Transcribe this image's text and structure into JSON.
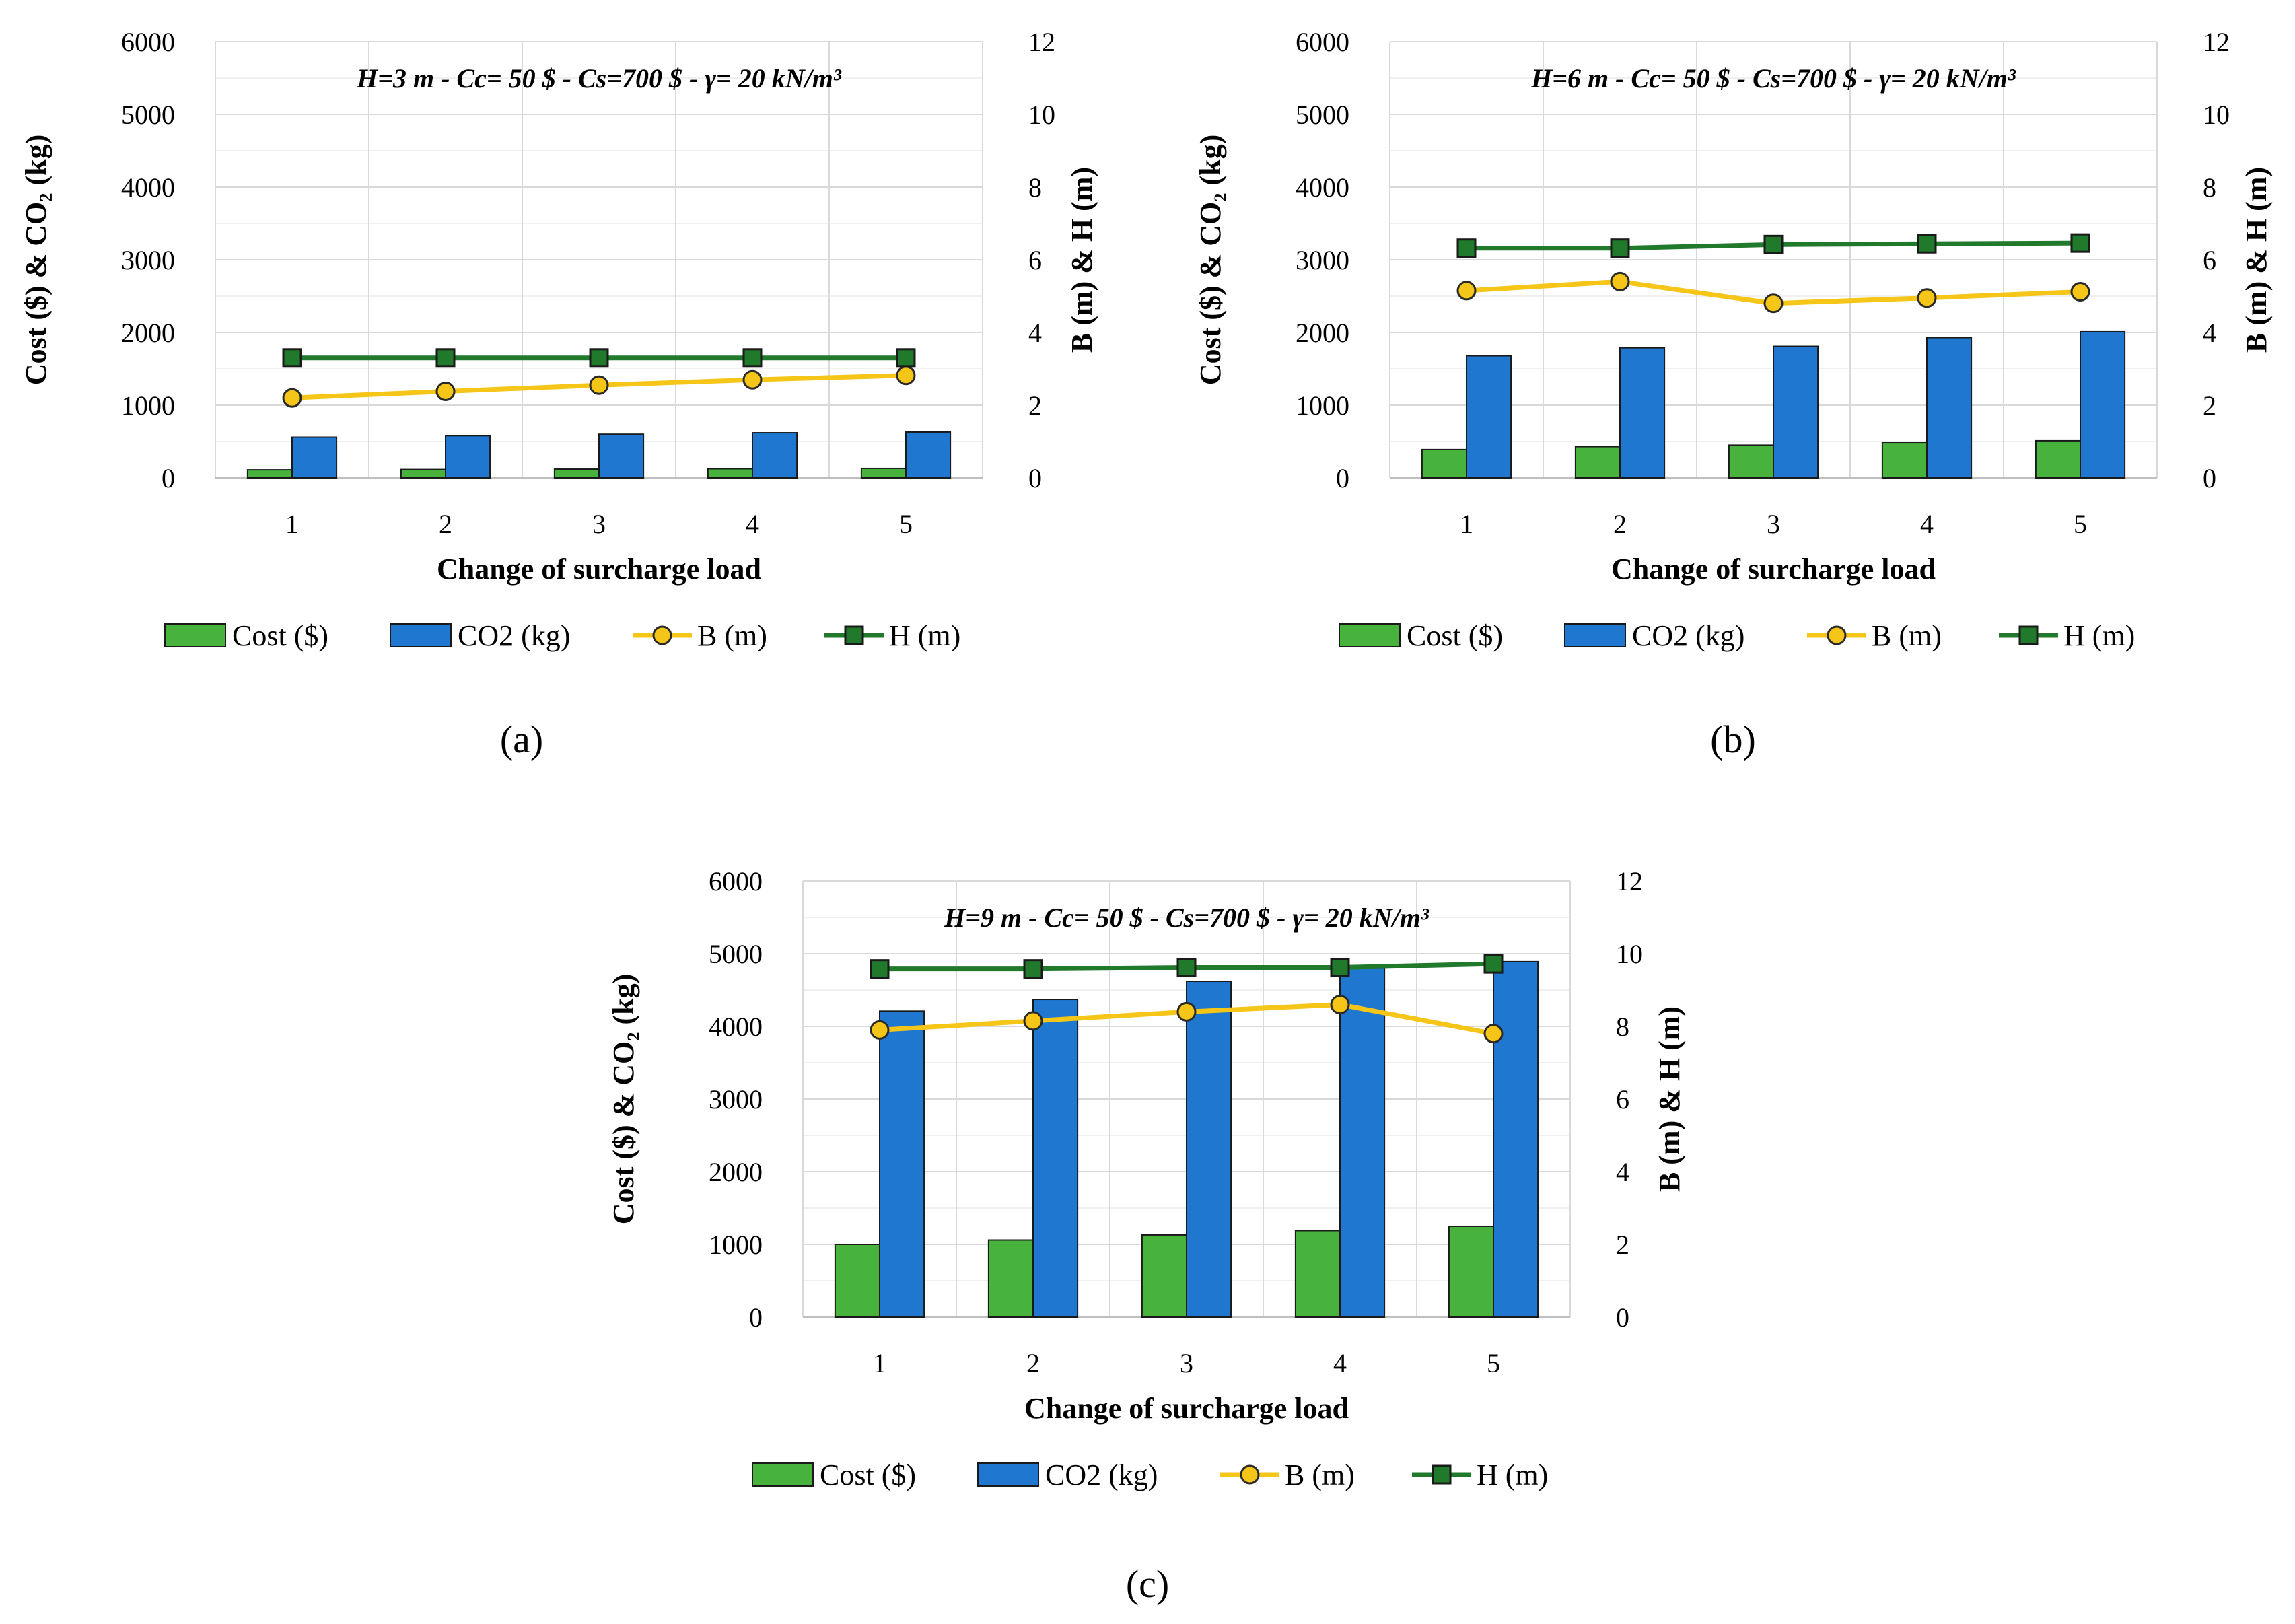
{
  "chart_data": [
    {
      "type": "bar",
      "panel_label": "(a)",
      "title": "H=3 m - Cc= 50 $ - Cs=700 $ - γ= 20 kN/m³",
      "xlabel": "Change of surcharge load",
      "ylabel_left": "Cost ($) & CO₂ (kg)",
      "ylabel_right": "B (m) & H (m)",
      "categories": [
        "1",
        "2",
        "3",
        "4",
        "5"
      ],
      "ylim_left": [
        0,
        6000
      ],
      "yticks_left": [
        "0",
        "1000",
        "2000",
        "3000",
        "4000",
        "5000",
        "6000"
      ],
      "ylim_right": [
        0,
        12
      ],
      "yticks_right": [
        "0",
        "2",
        "4",
        "6",
        "8",
        "10",
        "12"
      ],
      "series": [
        {
          "name": "Cost ($)",
          "axis": "left",
          "kind": "bar",
          "color": "#47b33d",
          "values": [
            110,
            115,
            120,
            125,
            130
          ]
        },
        {
          "name": "CO2 (kg)",
          "axis": "left",
          "kind": "bar",
          "color": "#1f77d0",
          "values": [
            560,
            580,
            600,
            620,
            630
          ]
        },
        {
          "name": "B (m)",
          "axis": "right",
          "kind": "line",
          "color": "#f5c518",
          "marker": "circle",
          "values": [
            2.2,
            2.38,
            2.55,
            2.7,
            2.82
          ]
        },
        {
          "name": "H (m)",
          "axis": "right",
          "kind": "line",
          "color": "#217a2b",
          "marker": "square",
          "values": [
            3.3,
            3.3,
            3.3,
            3.3,
            3.3
          ]
        }
      ],
      "legend": [
        "Cost ($)",
        "CO2 (kg)",
        "B (m)",
        "H (m)"
      ],
      "legend_position": "bottom"
    },
    {
      "type": "bar",
      "panel_label": "(b)",
      "title": "H=6 m - Cc= 50 $ - Cs=700 $ - γ= 20 kN/m³",
      "xlabel": "Change of surcharge load",
      "ylabel_left": "Cost ($) & CO₂ (kg)",
      "ylabel_right": "B (m) & H (m)",
      "categories": [
        "1",
        "2",
        "3",
        "4",
        "5"
      ],
      "ylim_left": [
        0,
        6000
      ],
      "yticks_left": [
        "0",
        "1000",
        "2000",
        "3000",
        "4000",
        "5000",
        "6000"
      ],
      "ylim_right": [
        0,
        12
      ],
      "yticks_right": [
        "0",
        "2",
        "4",
        "6",
        "8",
        "10",
        "12"
      ],
      "series": [
        {
          "name": "Cost ($)",
          "axis": "left",
          "kind": "bar",
          "color": "#47b33d",
          "values": [
            390,
            430,
            450,
            490,
            510
          ]
        },
        {
          "name": "CO2 (kg)",
          "axis": "left",
          "kind": "bar",
          "color": "#1f77d0",
          "values": [
            1680,
            1790,
            1810,
            1930,
            2010
          ]
        },
        {
          "name": "B (m)",
          "axis": "right",
          "kind": "line",
          "color": "#f5c518",
          "marker": "circle",
          "values": [
            5.15,
            5.4,
            4.8,
            4.95,
            5.12
          ]
        },
        {
          "name": "H (m)",
          "axis": "right",
          "kind": "line",
          "color": "#217a2b",
          "marker": "square",
          "values": [
            6.32,
            6.32,
            6.42,
            6.44,
            6.46
          ]
        }
      ],
      "legend": [
        "Cost ($)",
        "CO2 (kg)",
        "B (m)",
        "H (m)"
      ],
      "legend_position": "bottom"
    },
    {
      "type": "bar",
      "panel_label": "(c)",
      "title": "H=9 m - Cc= 50 $ - Cs=700 $ - γ= 20 kN/m³",
      "xlabel": "Change of surcharge load",
      "ylabel_left": "Cost ($) & CO₂ (kg)",
      "ylabel_right": "B (m) & H (m)",
      "categories": [
        "1",
        "2",
        "3",
        "4",
        "5"
      ],
      "ylim_left": [
        0,
        6000
      ],
      "yticks_left": [
        "0",
        "1000",
        "2000",
        "3000",
        "4000",
        "5000",
        "6000"
      ],
      "ylim_right": [
        0,
        12
      ],
      "yticks_right": [
        "0",
        "2",
        "4",
        "6",
        "8",
        "10",
        "12"
      ],
      "series": [
        {
          "name": "Cost ($)",
          "axis": "left",
          "kind": "bar",
          "color": "#47b33d",
          "values": [
            1000,
            1060,
            1130,
            1190,
            1250
          ]
        },
        {
          "name": "CO2 (kg)",
          "axis": "left",
          "kind": "bar",
          "color": "#1f77d0",
          "values": [
            4210,
            4370,
            4620,
            4800,
            4890
          ]
        },
        {
          "name": "B (m)",
          "axis": "right",
          "kind": "line",
          "color": "#f5c518",
          "marker": "circle",
          "values": [
            7.9,
            8.15,
            8.4,
            8.6,
            7.8
          ]
        },
        {
          "name": "H (m)",
          "axis": "right",
          "kind": "line",
          "color": "#217a2b",
          "marker": "square",
          "values": [
            9.58,
            9.58,
            9.62,
            9.62,
            9.72
          ]
        }
      ],
      "legend": [
        "Cost ($)",
        "CO2 (kg)",
        "B (m)",
        "H (m)"
      ],
      "legend_position": "bottom"
    }
  ]
}
